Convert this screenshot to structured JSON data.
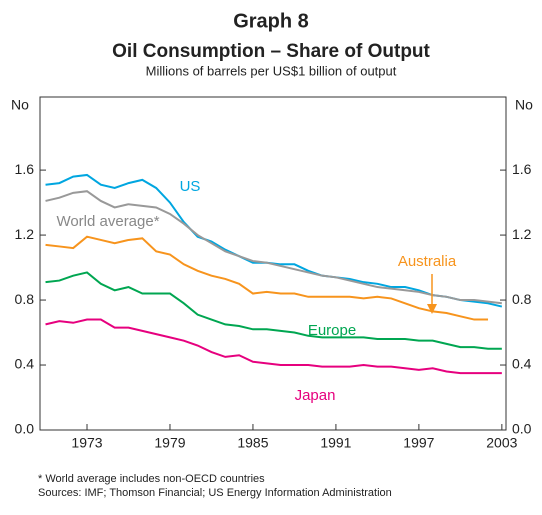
{
  "chart_data": {
    "type": "line",
    "title": "Graph 8",
    "subtitle": "Oil Consumption – Share of Output",
    "y_label": "Millions of barrels per US$1 billion of output",
    "y_unit": "No",
    "footnote": "*    World average includes non-OECD countries",
    "sources": "Sources: IMF; Thomson Financial; US Energy Information Administration",
    "x": [
      1970,
      1971,
      1972,
      1973,
      1974,
      1975,
      1976,
      1977,
      1978,
      1979,
      1980,
      1981,
      1982,
      1983,
      1984,
      1985,
      1986,
      1987,
      1988,
      1989,
      1990,
      1991,
      1992,
      1993,
      1994,
      1995,
      1996,
      1997,
      1998,
      1999,
      2000,
      2001,
      2002,
      2003
    ],
    "xlim": [
      1969.6,
      2003.3
    ],
    "xticks": [
      1973,
      1979,
      1985,
      1991,
      1997,
      2003
    ],
    "ylim": [
      0,
      2.05
    ],
    "yticks": [
      {
        "value": 0,
        "label": "0.0"
      },
      0.4,
      0.8,
      1.2,
      1.6
    ],
    "grid": false,
    "series": [
      {
        "name": "US",
        "color": "#00a6e0",
        "values": [
          1.51,
          1.52,
          1.56,
          1.57,
          1.51,
          1.49,
          1.52,
          1.54,
          1.49,
          1.4,
          1.28,
          1.19,
          1.16,
          1.11,
          1.07,
          1.03,
          1.03,
          1.02,
          1.02,
          0.98,
          0.95,
          0.94,
          0.93,
          0.91,
          0.9,
          0.88,
          0.88,
          0.86,
          0.83,
          0.82,
          0.8,
          0.79,
          0.78,
          0.76
        ]
      },
      {
        "name": "World average*",
        "color": "#999999",
        "values": [
          1.41,
          1.43,
          1.46,
          1.47,
          1.41,
          1.37,
          1.39,
          1.38,
          1.37,
          1.33,
          1.27,
          1.2,
          1.15,
          1.1,
          1.07,
          1.04,
          1.03,
          1.01,
          0.99,
          0.97,
          0.95,
          0.94,
          0.92,
          0.9,
          0.88,
          0.87,
          0.86,
          0.85,
          0.83,
          0.82,
          0.8,
          0.8,
          0.79,
          0.78
        ]
      },
      {
        "name": "Australia",
        "color": "#f7941d",
        "values": [
          1.14,
          1.13,
          1.12,
          1.19,
          1.17,
          1.15,
          1.17,
          1.18,
          1.1,
          1.08,
          1.02,
          0.98,
          0.95,
          0.93,
          0.9,
          0.84,
          0.85,
          0.84,
          0.84,
          0.82,
          0.82,
          0.82,
          0.82,
          0.81,
          0.82,
          0.81,
          0.78,
          0.75,
          0.73,
          0.72,
          0.7,
          0.68,
          0.68,
          null
        ]
      },
      {
        "name": "Europe",
        "color": "#00a651",
        "values": [
          0.91,
          0.92,
          0.95,
          0.97,
          0.9,
          0.86,
          0.88,
          0.84,
          0.84,
          0.84,
          0.78,
          0.71,
          0.68,
          0.65,
          0.64,
          0.62,
          0.62,
          0.61,
          0.6,
          0.58,
          0.57,
          0.57,
          0.57,
          0.57,
          0.56,
          0.56,
          0.56,
          0.55,
          0.55,
          0.53,
          0.51,
          0.51,
          0.5,
          0.5
        ]
      },
      {
        "name": "Japan",
        "color": "#e6007e",
        "values": [
          0.65,
          0.67,
          0.66,
          0.68,
          0.68,
          0.63,
          0.63,
          0.61,
          0.59,
          0.57,
          0.55,
          0.52,
          0.48,
          0.45,
          0.46,
          0.42,
          0.41,
          0.4,
          0.4,
          0.4,
          0.39,
          0.39,
          0.39,
          0.4,
          0.39,
          0.39,
          0.38,
          0.37,
          0.38,
          0.36,
          0.35,
          0.35,
          0.35,
          0.35
        ]
      }
    ]
  }
}
